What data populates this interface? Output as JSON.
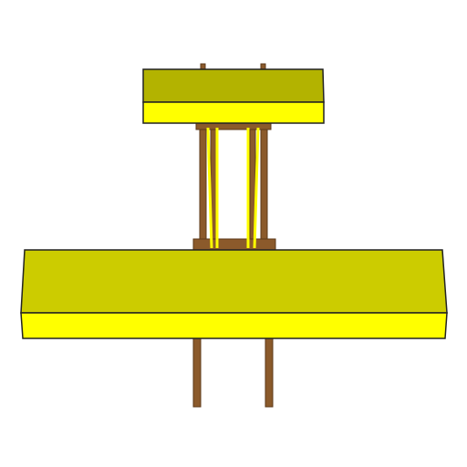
{
  "colors": {
    "background": "#ffffff",
    "yellow_top_face": "#cccc00",
    "yellow_front_face": "#ffff00",
    "yellow_upper_top_face": "#b3b300",
    "post_wood": "#8b5a2b",
    "post_dark": "#5c3a1a",
    "outline": "#222222"
  },
  "model": {
    "description_visible": false,
    "parts": [
      "upper-box",
      "lower-box",
      "upright-posts",
      "legs"
    ]
  }
}
